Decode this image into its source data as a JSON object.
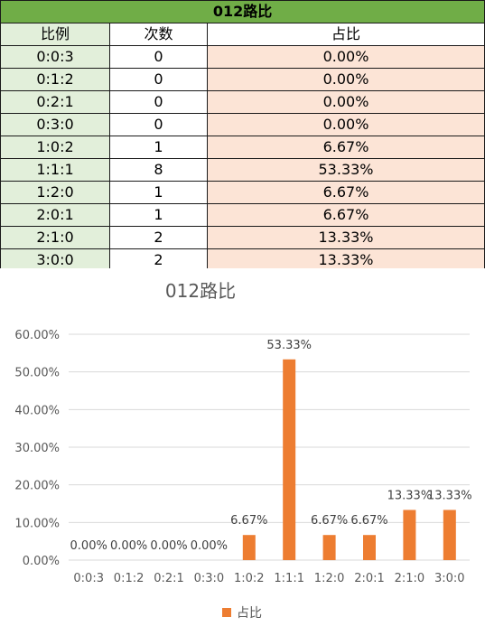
{
  "table": {
    "title": "012路比",
    "headers": [
      "比例",
      "次数",
      "占比"
    ],
    "rows": [
      [
        "0:0:3",
        "0",
        "0.00%"
      ],
      [
        "0:1:2",
        "0",
        "0.00%"
      ],
      [
        "0:2:1",
        "0",
        "0.00%"
      ],
      [
        "0:3:0",
        "0",
        "0.00%"
      ],
      [
        "1:0:2",
        "1",
        "6.67%"
      ],
      [
        "1:1:1",
        "8",
        "53.33%"
      ],
      [
        "1:2:0",
        "1",
        "6.67%"
      ],
      [
        "2:0:1",
        "1",
        "6.67%"
      ],
      [
        "2:1:0",
        "2",
        "13.33%"
      ],
      [
        "3:0:0",
        "2",
        "13.33%"
      ]
    ]
  },
  "colors": {
    "title_bg": "#70ad47",
    "ratio_col_bg": "#e2efda",
    "share_col_bg": "#fce4d6",
    "bar": "#ed7d31",
    "grid": "#d9d9d9"
  },
  "chart_data": {
    "type": "bar",
    "title": "012路比",
    "categories": [
      "0:0:3",
      "0:1:2",
      "0:2:1",
      "0:3:0",
      "1:0:2",
      "1:1:1",
      "1:2:0",
      "2:0:1",
      "2:1:0",
      "3:0:0"
    ],
    "series": [
      {
        "name": "占比",
        "values": [
          0.0,
          0.0,
          0.0,
          0.0,
          6.67,
          53.33,
          6.67,
          6.67,
          13.33,
          13.33
        ]
      }
    ],
    "data_labels": [
      "0.00%",
      "0.00%",
      "0.00%",
      "0.00%",
      "6.67%",
      "53.33%",
      "6.67%",
      "6.67%",
      "13.33%",
      "13.33%"
    ],
    "yticks": [
      "0.00%",
      "10.00%",
      "20.00%",
      "30.00%",
      "40.00%",
      "50.00%",
      "60.00%"
    ],
    "ylim": [
      0,
      60
    ],
    "grid": true,
    "legend": "bottom"
  }
}
